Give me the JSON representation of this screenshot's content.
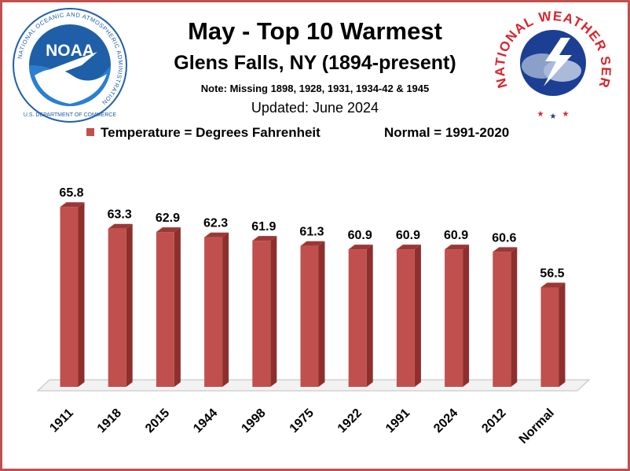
{
  "header": {
    "title": "May - Top 10 Warmest",
    "subtitle": "Glens Falls, NY (1894-present)",
    "note": "Note: Missing 1898, 1928, 1931, 1934-42 & 1945",
    "updated": "Updated: June 2024"
  },
  "legend": {
    "series_label": "Temperature = Degrees Fahrenheit",
    "normal_label": "Normal = 1991-2020"
  },
  "logos": {
    "noaa_text": "NOAA",
    "noaa_ring_text": "NATIONAL OCEANIC AND ATMOSPHERIC ADMINISTRATION",
    "noaa_bottom_text": "U.S. DEPARTMENT OF COMMERCE",
    "nws_ring_text": "NATIONAL WEATHER SERVICE"
  },
  "colors": {
    "bar_front": "#c0504d",
    "bar_side": "#8e2f2d",
    "bar_top": "#9b3836",
    "frame": "#c0504d",
    "noaa_blue": "#1f5fa8",
    "nws_red": "#d7262d"
  },
  "chart_data": {
    "type": "bar",
    "categories": [
      "1911",
      "1918",
      "2015",
      "1944",
      "1998",
      "1975",
      "1922",
      "1991",
      "2024",
      "2012",
      "Normal"
    ],
    "values": [
      65.8,
      63.3,
      62.9,
      62.3,
      61.9,
      61.3,
      60.9,
      60.9,
      60.9,
      60.6,
      56.5
    ],
    "data_labels": [
      "65.8",
      "63.3",
      "62.9",
      "62.3",
      "61.9",
      "61.3",
      "60.9",
      "60.9",
      "60.9",
      "60.6",
      "56.5"
    ],
    "title": "May - Top 10 Warmest",
    "xlabel": "",
    "ylabel": "",
    "ylim": [
      45,
      67
    ],
    "grid": false,
    "legend_position": "top"
  }
}
